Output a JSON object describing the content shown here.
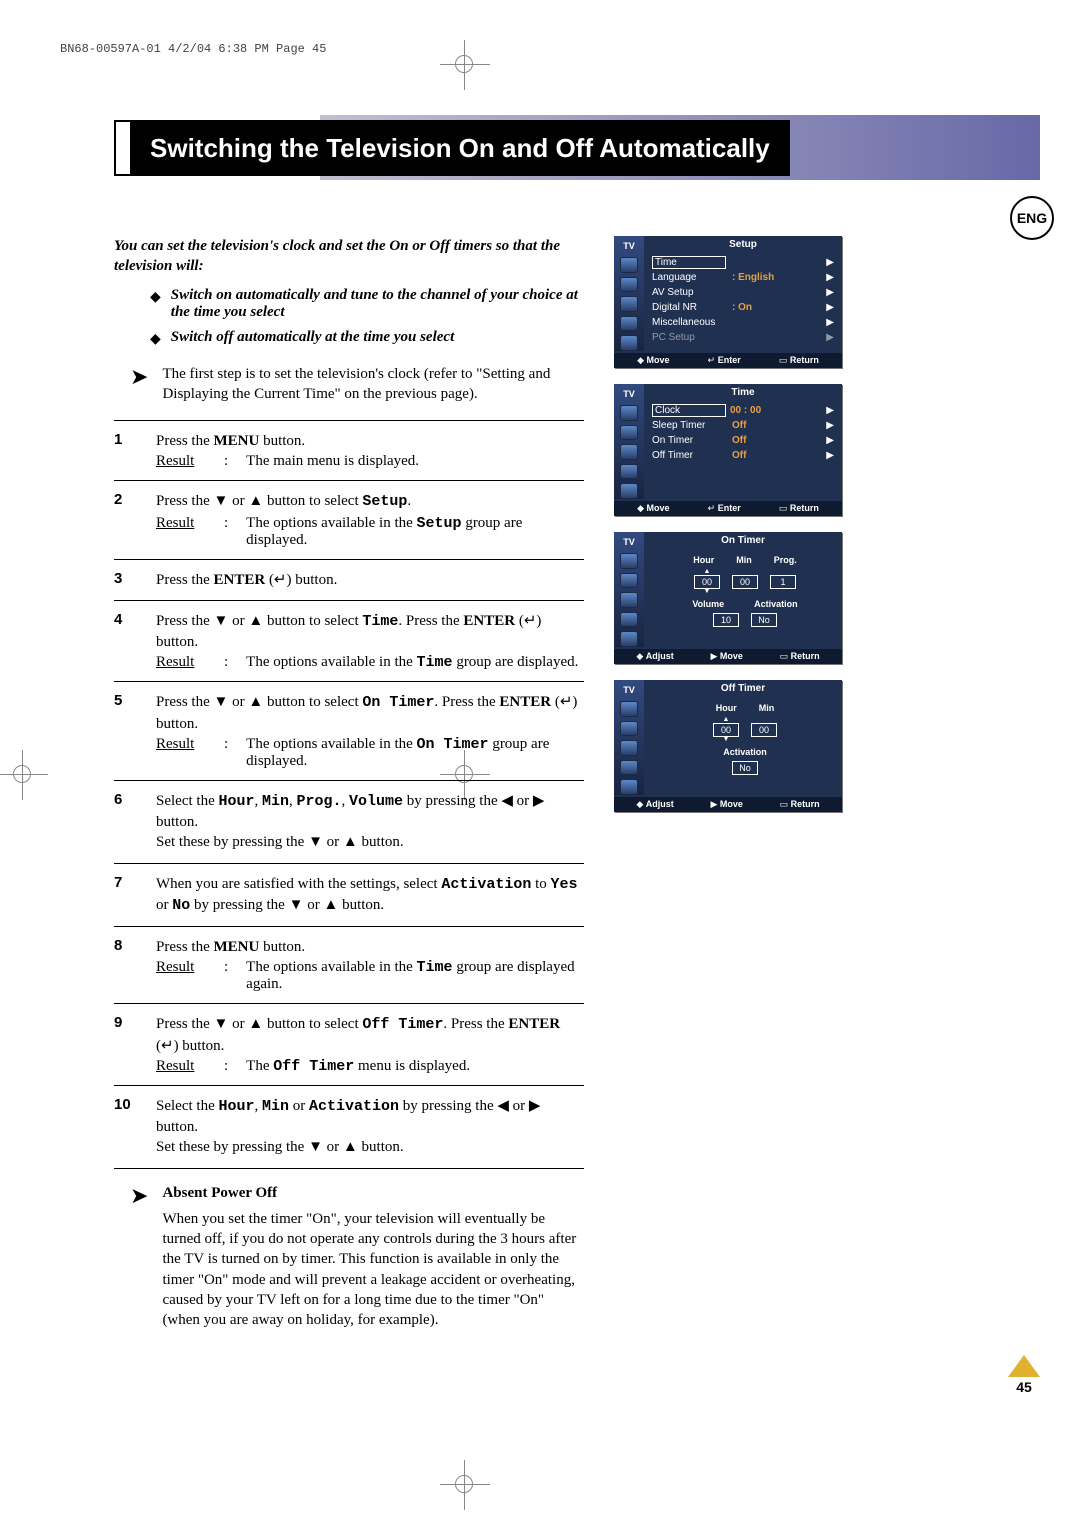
{
  "header": {
    "print_slug": "BN68-00597A-01  4/2/04  6:38 PM  Page 45",
    "lang_badge": "ENG",
    "page_number": "45"
  },
  "title": "Switching the Television On and Off Automatically",
  "intro": "You can set the television's clock and set the On or Off timers so that the television will:",
  "bullets": [
    "Switch on automatically and tune to the channel of your choice at the time you select",
    "Switch off automatically at the time you select"
  ],
  "tip": "The first step is to set the television's clock (refer to \"Setting and Displaying the Current Time\" on the previous page).",
  "steps": [
    {
      "n": "1",
      "text": "Press the <b>MENU</b> button.",
      "result": "The main menu is displayed."
    },
    {
      "n": "2",
      "text": "Press the <span class='arrowsym'>▼</span> or <span class='arrowsym'>▲</span> button to select <span class='mono'>Setup</span>.",
      "result": "The options available in the <span class='mono'>Setup</span> group are displayed."
    },
    {
      "n": "3",
      "text": "Press the <b>ENTER</b> (↵) button."
    },
    {
      "n": "4",
      "text": "Press the <span class='arrowsym'>▼</span> or <span class='arrowsym'>▲</span> button to select <span class='mono'>Time</span>. Press the <b>ENTER</b> (↵) button.",
      "result": "The options available in the <span class='mono'>Time</span> group are displayed."
    },
    {
      "n": "5",
      "text": "Press the <span class='arrowsym'>▼</span> or <span class='arrowsym'>▲</span> button to select <span class='mono'>On Timer</span>. Press the <b>ENTER</b> (↵) button.",
      "result": "The options available in the <span class='mono'>On Timer</span> group are displayed."
    },
    {
      "n": "6",
      "text": "Select the <span class='mono'>Hour</span>, <span class='mono'>Min</span>, <span class='mono'>Prog.</span>, <span class='mono'>Volume</span> by pressing the <span class='arrowsym'>◀</span> or <span class='arrowsym'>▶</span> button.<br>Set these by pressing the <span class='arrowsym'>▼</span> or <span class='arrowsym'>▲</span> button."
    },
    {
      "n": "7",
      "text": "When you are satisfied with the settings, select <span class='mono'>Activation</span> to <span class='mono'>Yes</span> or <span class='mono'>No</span> by pressing the <span class='arrowsym'>▼</span> or <span class='arrowsym'>▲</span> button."
    },
    {
      "n": "8",
      "text": "Press the <b>MENU</b> button.",
      "result": "The options available in the <span class='mono'>Time</span> group are displayed again."
    },
    {
      "n": "9",
      "text": "Press the <span class='arrowsym'>▼</span> or <span class='arrowsym'>▲</span> button to select <span class='mono'>Off Timer</span>. Press the <b>ENTER</b> (↵) button.",
      "result": "The <span class='mono'>Off Timer</span> menu is displayed."
    },
    {
      "n": "10",
      "text": "Select the <span class='mono'>Hour</span>, <span class='mono'>Min</span> or <span class='mono'>Activation</span> by pressing the <span class='arrowsym'>◀</span> or <span class='arrowsym'>▶</span> button.<br>Set these by pressing the <span class='arrowsym'>▼</span> or <span class='arrowsym'>▲</span> button."
    }
  ],
  "note": {
    "heading": "Absent Power Off",
    "body": "When you set the timer \"On\", your television will eventually be turned off, if you do not operate any controls during the 3 hours after the TV is turned on by timer. This function is available in only the timer \"On\" mode and will prevent a leakage accident or overheating, caused by your TV left on for a long time due to the timer \"On\" (when you are away on holiday, for example)."
  },
  "osd": {
    "tv_label": "TV",
    "setup": {
      "title": "Setup",
      "rows": [
        {
          "k": "Time",
          "v": "",
          "sel": true
        },
        {
          "k": "Language",
          "v": ": English"
        },
        {
          "k": "AV Setup",
          "v": ""
        },
        {
          "k": "Digital NR",
          "v": ": On"
        },
        {
          "k": "Miscellaneous",
          "v": ""
        },
        {
          "k": "PC Setup",
          "v": "",
          "dim": true
        }
      ],
      "footer": [
        "◆ Move",
        "↵ Enter",
        "▭ Return"
      ]
    },
    "time": {
      "title": "Time",
      "rows": [
        {
          "k": "Clock",
          "v": "00 : 00",
          "sel": true
        },
        {
          "k": "Sleep Timer",
          "v": "Off"
        },
        {
          "k": "On Timer",
          "v": "Off"
        },
        {
          "k": "Off Timer",
          "v": "Off"
        }
      ],
      "footer": [
        "◆ Move",
        "↵ Enter",
        "▭ Return"
      ]
    },
    "on_timer": {
      "title": "On Timer",
      "labels1": [
        "Hour",
        "Min",
        "Prog."
      ],
      "values1": [
        "00",
        "00",
        "1"
      ],
      "labels2": [
        "Volume",
        "Activation"
      ],
      "values2": [
        "10",
        "No"
      ],
      "footer": [
        "◆ Adjust",
        "▶ Move",
        "▭ Return"
      ]
    },
    "off_timer": {
      "title": "Off Timer",
      "labels1": [
        "Hour",
        "Min"
      ],
      "values1": [
        "00",
        "00"
      ],
      "labels2": [
        "Activation"
      ],
      "values2": [
        "No"
      ],
      "footer": [
        "◆ Adjust",
        "▶ Move",
        "▭ Return"
      ]
    }
  },
  "style": {
    "accent_gold": "#e0b030",
    "osd_bg": "#203050",
    "osd_value": "#e8a040"
  }
}
